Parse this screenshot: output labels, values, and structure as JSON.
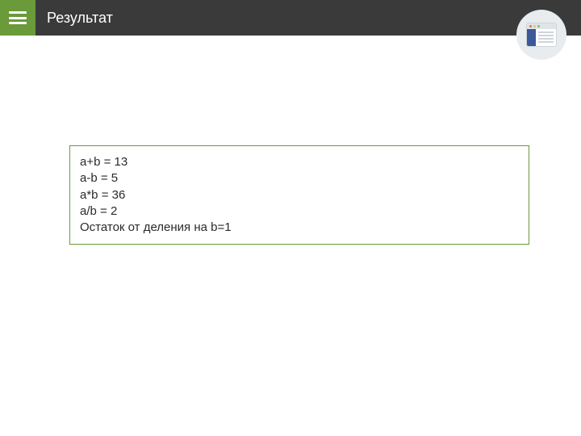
{
  "header": {
    "title": "Результат"
  },
  "output": {
    "border_color": "#6a9a3a",
    "lines": [
      "a+b = 13",
      "a-b = 5",
      "a*b = 36",
      "a/b = 2",
      "Остаток от деления на b=1"
    ]
  },
  "colors": {
    "header_bg": "#3a3a3a",
    "menu_bg": "#6a9a3a",
    "text": "#2a2a2a",
    "icon_circle": "#e8ecef"
  }
}
